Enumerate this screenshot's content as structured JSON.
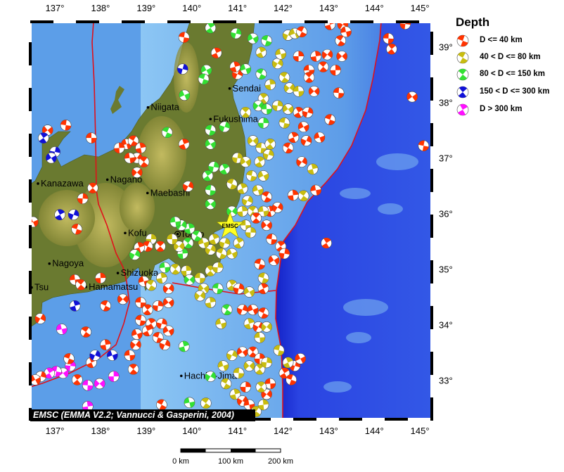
{
  "map": {
    "lon_range": [
      136.46,
      145.26
    ],
    "lat_range": [
      32.3,
      39.45
    ],
    "lon_ticks": [
      "137°",
      "138°",
      "139°",
      "140°",
      "141°",
      "142°",
      "143°",
      "144°",
      "145°"
    ],
    "lat_ticks": [
      "39°",
      "38°",
      "37°",
      "36°",
      "35°",
      "34°",
      "33°"
    ],
    "colors": {
      "land": "#6a7a30",
      "mountains": "#b9a84c",
      "sea": "#5c9ee8",
      "shelf": "#7cbaf2",
      "deep": "#2a44e2",
      "plate_boundary": "#e0101a"
    }
  },
  "legend": {
    "title": "Depth",
    "items": [
      {
        "label": "D <= 40 km",
        "color": "#ff3300"
      },
      {
        "label": "40 < D <= 80 km",
        "color": "#c8bc10"
      },
      {
        "label": "80 < D <= 150 km",
        "color": "#33e033"
      },
      {
        "label": "150 < D <= 300 km",
        "color": "#1010d8"
      },
      {
        "label": "D > 300 km",
        "color": "#ff10ff"
      }
    ]
  },
  "cities": [
    {
      "name": "Sendai",
      "lon": 140.83,
      "lat": 38.25
    },
    {
      "name": "Niigata",
      "lon": 139.04,
      "lat": 37.91
    },
    {
      "name": "Fukushima",
      "lon": 140.41,
      "lat": 37.7
    },
    {
      "name": "Kanazawa",
      "lon": 136.63,
      "lat": 36.54
    },
    {
      "name": "Nagano",
      "lon": 138.15,
      "lat": 36.61
    },
    {
      "name": "Maebashi",
      "lon": 139.03,
      "lat": 36.37
    },
    {
      "name": "Kofu",
      "lon": 138.54,
      "lat": 35.65
    },
    {
      "name": "Tokyo",
      "lon": 139.69,
      "lat": 35.63,
      "capital": true
    },
    {
      "name": "Nagoya",
      "lon": 136.88,
      "lat": 35.1
    },
    {
      "name": "Shizuoka",
      "lon": 138.38,
      "lat": 34.93
    },
    {
      "name": "Hamamatsu",
      "lon": 137.68,
      "lat": 34.68
    },
    {
      "name": "Tsu",
      "lon": 136.49,
      "lat": 34.67
    },
    {
      "name": "Hachijo-Jima",
      "lon": 139.77,
      "lat": 33.08
    }
  ],
  "marker": {
    "label": "EMSC",
    "lon": 140.84,
    "lat": 35.77,
    "color": "#ffff22"
  },
  "credit": "EMSC (EMMA V2.2; Vannucci & Gasperini, 2004)",
  "scale_bar": {
    "labels": [
      "0 km",
      "100 km",
      "200 km"
    ]
  },
  "events": [
    [
      139.83,
      39.17,
      0
    ],
    [
      140.41,
      39.34,
      2
    ],
    [
      140.97,
      39.24,
      2
    ],
    [
      141.34,
      39.15,
      2
    ],
    [
      141.64,
      39.11,
      2
    ],
    [
      141.52,
      38.9,
      1
    ],
    [
      142.11,
      39.21,
      1
    ],
    [
      142.26,
      39.24,
      1
    ],
    [
      142.41,
      39.27,
      0
    ],
    [
      143.03,
      39.4,
      0
    ],
    [
      143.31,
      39.4,
      0
    ],
    [
      143.38,
      39.27,
      0
    ],
    [
      143.26,
      39.11,
      0
    ],
    [
      142.72,
      38.83,
      0
    ],
    [
      142.97,
      38.86,
      0
    ],
    [
      142.57,
      38.58,
      0
    ],
    [
      142.88,
      38.64,
      0
    ],
    [
      143.15,
      38.58,
      0
    ],
    [
      143.29,
      38.83,
      0
    ],
    [
      144.31,
      39.15,
      0
    ],
    [
      144.38,
      38.96,
      0
    ],
    [
      144.68,
      39.41,
      0
    ],
    [
      144.83,
      38.1,
      0
    ],
    [
      145.08,
      37.22,
      0
    ],
    [
      142.95,
      35.47,
      0
    ],
    [
      139.8,
      38.6,
      3
    ],
    [
      140.32,
      38.58,
      2
    ],
    [
      140.26,
      38.42,
      2
    ],
    [
      140.54,
      38.89,
      0
    ],
    [
      141.0,
      38.51,
      0
    ],
    [
      141.18,
      38.6,
      2
    ],
    [
      141.52,
      38.51,
      2
    ],
    [
      140.95,
      38.64,
      0
    ],
    [
      141.88,
      38.7,
      1
    ],
    [
      141.95,
      38.87,
      1
    ],
    [
      142.03,
      38.45,
      1
    ],
    [
      141.72,
      38.32,
      1
    ],
    [
      142.14,
      38.26,
      1
    ],
    [
      142.34,
      38.2,
      1
    ],
    [
      142.57,
      38.45,
      0
    ],
    [
      142.34,
      38.83,
      0
    ],
    [
      142.68,
      38.2,
      0
    ],
    [
      143.22,
      38.17,
      0
    ],
    [
      141.57,
      38.07,
      1
    ],
    [
      141.88,
      37.94,
      1
    ],
    [
      142.11,
      37.88,
      1
    ],
    [
      142.03,
      37.63,
      1
    ],
    [
      142.34,
      37.82,
      0
    ],
    [
      142.54,
      37.82,
      0
    ],
    [
      142.45,
      37.56,
      0
    ],
    [
      143.03,
      37.69,
      0
    ],
    [
      142.23,
      37.37,
      0
    ],
    [
      142.51,
      37.31,
      0
    ],
    [
      142.8,
      37.37,
      0
    ],
    [
      142.11,
      37.18,
      0
    ],
    [
      142.65,
      36.8,
      1
    ],
    [
      142.41,
      36.93,
      0
    ],
    [
      142.72,
      36.42,
      0
    ],
    [
      142.45,
      36.32,
      1
    ],
    [
      142.22,
      36.33,
      0
    ],
    [
      141.46,
      37.94,
      2
    ],
    [
      141.64,
      37.88,
      2
    ],
    [
      141.18,
      37.82,
      1
    ],
    [
      141.57,
      37.63,
      2
    ],
    [
      141.34,
      37.31,
      1
    ],
    [
      141.52,
      37.18,
      1
    ],
    [
      141.72,
      37.25,
      1
    ],
    [
      141.0,
      37.0,
      1
    ],
    [
      141.18,
      36.93,
      1
    ],
    [
      141.31,
      36.68,
      1
    ],
    [
      141.49,
      36.93,
      1
    ],
    [
      141.68,
      37.06,
      1
    ],
    [
      141.57,
      36.68,
      1
    ],
    [
      140.88,
      36.53,
      1
    ],
    [
      141.11,
      36.45,
      1
    ],
    [
      141.22,
      36.23,
      1
    ],
    [
      141.45,
      36.42,
      1
    ],
    [
      141.64,
      36.3,
      0
    ],
    [
      141.72,
      36.04,
      0
    ],
    [
      141.88,
      36.11,
      0
    ],
    [
      141.57,
      36.04,
      1
    ],
    [
      141.34,
      36.04,
      1
    ],
    [
      141.11,
      36.04,
      1
    ],
    [
      140.88,
      36.04,
      2
    ],
    [
      141.18,
      35.79,
      1
    ],
    [
      141.41,
      35.92,
      0
    ],
    [
      141.29,
      35.66,
      1
    ],
    [
      141.64,
      35.79,
      0
    ],
    [
      141.75,
      35.54,
      0
    ],
    [
      141.95,
      35.41,
      0
    ],
    [
      142.03,
      35.28,
      0
    ],
    [
      141.8,
      35.16,
      0
    ],
    [
      141.49,
      35.09,
      0
    ],
    [
      141.03,
      35.47,
      1
    ],
    [
      140.72,
      35.47,
      1
    ],
    [
      140.88,
      35.28,
      1
    ],
    [
      140.65,
      35.28,
      1
    ],
    [
      140.49,
      35.54,
      1
    ],
    [
      140.41,
      35.35,
      1
    ],
    [
      140.26,
      35.47,
      1
    ],
    [
      140.11,
      35.6,
      2
    ],
    [
      139.95,
      35.73,
      2
    ],
    [
      139.77,
      35.79,
      2
    ],
    [
      139.64,
      35.85,
      2
    ],
    [
      139.92,
      35.47,
      2
    ],
    [
      139.8,
      35.28,
      2
    ],
    [
      139.72,
      35.41,
      1
    ],
    [
      139.57,
      35.54,
      1
    ],
    [
      139.31,
      35.41,
      0
    ],
    [
      139.11,
      35.54,
      1
    ],
    [
      140.41,
      36.17,
      2
    ],
    [
      140.41,
      36.42,
      2
    ],
    [
      140.35,
      36.68,
      2
    ],
    [
      140.48,
      36.84,
      2
    ],
    [
      140.41,
      37.25,
      2
    ],
    [
      140.41,
      37.5,
      2
    ],
    [
      140.72,
      36.8,
      2
    ],
    [
      140.72,
      37.56,
      2
    ],
    [
      139.84,
      38.13,
      2
    ],
    [
      139.46,
      37.46,
      2
    ],
    [
      139.83,
      37.25,
      0
    ],
    [
      139.92,
      36.49,
      0
    ],
    [
      138.57,
      37.25,
      0
    ],
    [
      138.72,
      37.31,
      0
    ],
    [
      138.88,
      37.18,
      0
    ],
    [
      138.8,
      37.0,
      0
    ],
    [
      138.64,
      37.0,
      0
    ],
    [
      138.95,
      36.93,
      0
    ],
    [
      138.41,
      37.18,
      0
    ],
    [
      138.8,
      36.74,
      0
    ],
    [
      137.8,
      37.36,
      0
    ],
    [
      137.83,
      36.46,
      0
    ],
    [
      137.61,
      36.27,
      0
    ],
    [
      136.84,
      37.5,
      0
    ],
    [
      137.24,
      37.59,
      0
    ],
    [
      136.75,
      37.36,
      3
    ],
    [
      137.0,
      37.11,
      3
    ],
    [
      136.92,
      37.0,
      3
    ],
    [
      137.48,
      35.72,
      0
    ],
    [
      137.11,
      35.98,
      3
    ],
    [
      137.41,
      35.98,
      3
    ],
    [
      136.52,
      35.85,
      0
    ],
    [
      139.03,
      35.41,
      0
    ],
    [
      138.85,
      35.39,
      0
    ],
    [
      138.75,
      35.26,
      2
    ],
    [
      138.95,
      34.78,
      0
    ],
    [
      139.11,
      34.71,
      1
    ],
    [
      139.34,
      34.84,
      1
    ],
    [
      139.49,
      34.65,
      0
    ],
    [
      139.41,
      35.03,
      2
    ],
    [
      139.64,
      35.0,
      1
    ],
    [
      139.88,
      34.97,
      1
    ],
    [
      139.95,
      34.81,
      2
    ],
    [
      140.18,
      34.84,
      1
    ],
    [
      140.41,
      34.97,
      1
    ],
    [
      140.57,
      35.03,
      1
    ],
    [
      140.26,
      34.65,
      1
    ],
    [
      140.57,
      34.65,
      2
    ],
    [
      140.88,
      34.71,
      1
    ],
    [
      141.03,
      34.65,
      0
    ],
    [
      141.26,
      34.59,
      1
    ],
    [
      141.57,
      34.84,
      1
    ],
    [
      141.57,
      34.65,
      0
    ],
    [
      141.11,
      34.27,
      0
    ],
    [
      141.34,
      34.27,
      0
    ],
    [
      141.57,
      34.21,
      0
    ],
    [
      141.26,
      34.02,
      1
    ],
    [
      141.46,
      33.96,
      0
    ],
    [
      140.64,
      34.02,
      1
    ],
    [
      140.77,
      34.27,
      2
    ],
    [
      140.41,
      34.4,
      1
    ],
    [
      140.18,
      34.52,
      1
    ],
    [
      137.44,
      34.81,
      0
    ],
    [
      137.57,
      34.72,
      0
    ],
    [
      138.0,
      34.84,
      0
    ],
    [
      138.49,
      34.46,
      0
    ],
    [
      138.88,
      34.4,
      0
    ],
    [
      139.03,
      34.27,
      0
    ],
    [
      139.26,
      34.34,
      0
    ],
    [
      139.49,
      34.4,
      0
    ],
    [
      138.88,
      34.08,
      0
    ],
    [
      139.11,
      34.02,
      0
    ],
    [
      139.34,
      34.02,
      0
    ],
    [
      139.49,
      33.89,
      0
    ],
    [
      139.26,
      33.77,
      0
    ],
    [
      139.03,
      33.89,
      0
    ],
    [
      139.41,
      33.64,
      0
    ],
    [
      138.8,
      33.83,
      0
    ],
    [
      138.11,
      34.34,
      0
    ],
    [
      137.44,
      34.34,
      3
    ],
    [
      136.68,
      34.11,
      0
    ],
    [
      137.15,
      33.92,
      4
    ],
    [
      137.68,
      33.87,
      0
    ],
    [
      138.11,
      33.64,
      0
    ],
    [
      138.77,
      33.64,
      0
    ],
    [
      138.64,
      33.45,
      0
    ],
    [
      138.72,
      33.2,
      0
    ],
    [
      138.29,
      33.07,
      4
    ],
    [
      137.98,
      32.94,
      4
    ],
    [
      137.72,
      32.91,
      4
    ],
    [
      137.49,
      33.01,
      0
    ],
    [
      137.34,
      33.26,
      4
    ],
    [
      137.18,
      33.13,
      4
    ],
    [
      137.03,
      33.16,
      4
    ],
    [
      136.88,
      33.13,
      4
    ],
    [
      136.69,
      33.07,
      0
    ],
    [
      136.57,
      33.01,
      0
    ],
    [
      137.31,
      33.39,
      0
    ],
    [
      137.8,
      33.32,
      0
    ],
    [
      137.88,
      33.45,
      3
    ],
    [
      138.26,
      33.45,
      3
    ],
    [
      139.34,
      32.56,
      0
    ],
    [
      139.83,
      33.61,
      2
    ],
    [
      140.41,
      33.07,
      2
    ],
    [
      139.95,
      32.6,
      2
    ],
    [
      140.31,
      32.59,
      1
    ],
    [
      137.72,
      32.53,
      4
    ],
    [
      141.64,
      33.96,
      1
    ],
    [
      141.49,
      33.77,
      1
    ],
    [
      141.34,
      33.51,
      0
    ],
    [
      141.49,
      33.39,
      0
    ],
    [
      141.26,
      33.26,
      1
    ],
    [
      141.03,
      33.13,
      1
    ],
    [
      141.49,
      33.2,
      1
    ],
    [
      141.64,
      33.32,
      1
    ],
    [
      141.11,
      33.51,
      0
    ],
    [
      141.91,
      33.54,
      1
    ],
    [
      142.03,
      33.13,
      0
    ],
    [
      142.26,
      33.26,
      0
    ],
    [
      142.38,
      33.39,
      0
    ],
    [
      142.18,
      33.01,
      0
    ],
    [
      142.11,
      33.32,
      1
    ],
    [
      140.88,
      33.45,
      1
    ],
    [
      140.69,
      33.26,
      1
    ],
    [
      140.75,
      32.94,
      1
    ],
    [
      140.95,
      32.75,
      1
    ],
    [
      141.11,
      32.63,
      0
    ],
    [
      141.26,
      32.56,
      0
    ],
    [
      141.41,
      32.44,
      1
    ],
    [
      141.57,
      32.56,
      1
    ],
    [
      141.64,
      32.75,
      0
    ],
    [
      141.72,
      32.94,
      0
    ],
    [
      141.52,
      32.88,
      1
    ],
    [
      141.18,
      32.88,
      0
    ],
    [
      140.88,
      32.37,
      1
    ]
  ]
}
